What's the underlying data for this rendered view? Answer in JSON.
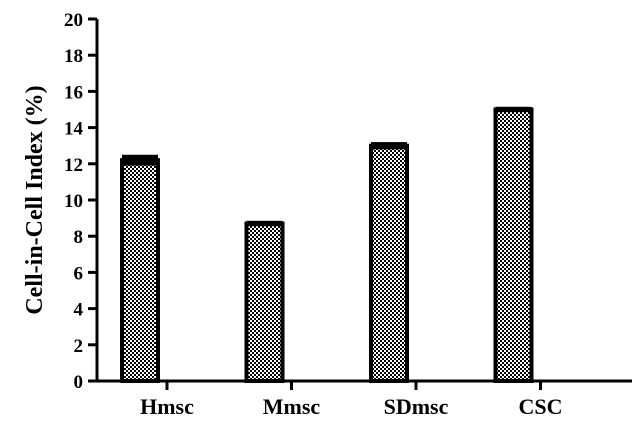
{
  "chart_data": {
    "type": "bar",
    "title": "",
    "xlabel": "",
    "ylabel": "Cell-in-Cell Index (%)",
    "categories": [
      "Hmsc",
      "Mmsc",
      "SDmsc",
      "CSC"
    ],
    "values": [
      12.2,
      8.7,
      13.0,
      15.0
    ],
    "errors": [
      0.3,
      0.15,
      0.2,
      0.15
    ],
    "ylim": [
      0,
      20
    ],
    "yticks": [
      0,
      2,
      4,
      6,
      8,
      10,
      12,
      14,
      16,
      18,
      20
    ],
    "grid": false,
    "legend": "none",
    "bar_pattern": "checkerboard",
    "colors": {
      "bar_fill_dark": "#000000",
      "bar_fill_light": "#ffffff",
      "axis": "#000000"
    }
  }
}
